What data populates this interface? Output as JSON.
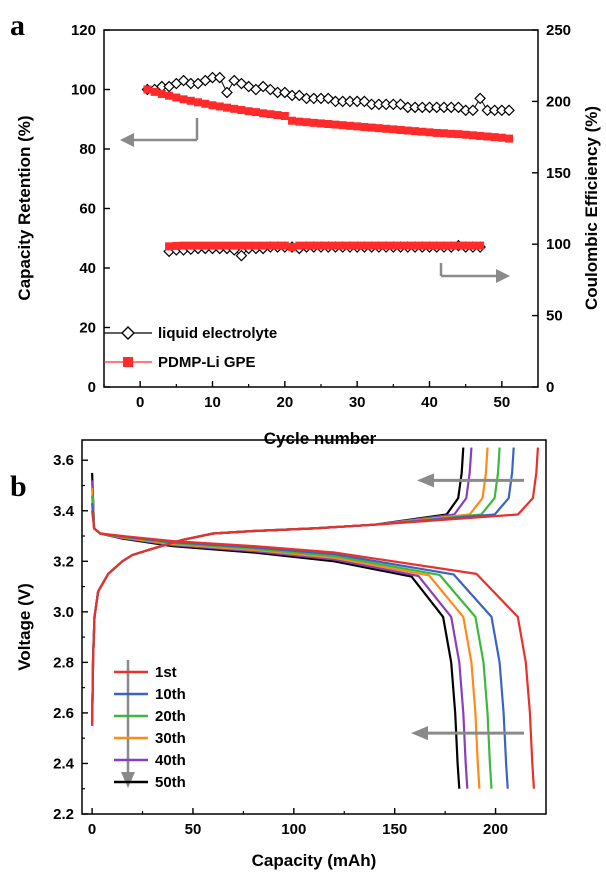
{
  "chart_data": [
    {
      "panel": "a",
      "type": "scatter",
      "xlabel": "Cycle number",
      "ylabel": "Capacity Retention (%)",
      "ylabel_right": "Coulombic Efficiency (%)",
      "xlim": [
        -5,
        55
      ],
      "ylim": [
        0,
        120
      ],
      "ylim_right": [
        0,
        250
      ],
      "xticks": [
        0,
        10,
        20,
        30,
        40,
        50
      ],
      "yticks": [
        0,
        20,
        40,
        60,
        80,
        100,
        120
      ],
      "yticks_right": [
        0,
        50,
        100,
        150,
        200,
        250
      ],
      "legend_position": "bottom-left",
      "colors": {
        "liquid": "#000000",
        "gpe": "#ff2a2a",
        "arrow": "#8a8a8a"
      },
      "series": [
        {
          "name": "liquid electrolyte",
          "marker": "open-diamond",
          "axis": "left",
          "x": [
            1,
            2,
            3,
            4,
            5,
            6,
            7,
            8,
            9,
            10,
            11,
            12,
            13,
            14,
            15,
            16,
            17,
            18,
            19,
            20,
            21,
            22,
            23,
            24,
            25,
            26,
            27,
            28,
            29,
            30,
            31,
            32,
            33,
            34,
            35,
            36,
            37,
            38,
            39,
            40,
            41,
            42,
            43,
            44,
            45,
            46,
            47,
            48,
            49,
            50,
            51
          ],
          "values": [
            100,
            100,
            101,
            101,
            102,
            103,
            102,
            102,
            103,
            104,
            104,
            99,
            103,
            102,
            101,
            100,
            101,
            100,
            99,
            99,
            98,
            98,
            97,
            97,
            97,
            97,
            96,
            96,
            96,
            96,
            96,
            95,
            95,
            95,
            95,
            95,
            94,
            94,
            94,
            94,
            94,
            94,
            94,
            94,
            93,
            93,
            97,
            93,
            93,
            93,
            93
          ]
        },
        {
          "name": "PDMP-Li GPE",
          "marker": "filled-square",
          "axis": "left",
          "x": [
            1,
            2,
            3,
            4,
            5,
            6,
            7,
            8,
            9,
            10,
            11,
            12,
            13,
            14,
            15,
            16,
            17,
            18,
            19,
            20,
            21,
            22,
            23,
            24,
            25,
            26,
            27,
            28,
            29,
            30,
            31,
            32,
            33,
            34,
            35,
            36,
            37,
            38,
            39,
            40,
            41,
            42,
            43,
            44,
            45,
            46,
            47,
            48,
            49,
            50,
            51
          ],
          "values": [
            100,
            99.2,
            98.5,
            97.9,
            97.3,
            96.7,
            96.2,
            95.7,
            95.2,
            94.7,
            94.3,
            93.9,
            93.5,
            93.1,
            92.7,
            92.4,
            92.0,
            91.7,
            91.4,
            91.1,
            89.5,
            89.2,
            89.0,
            88.8,
            88.6,
            88.4,
            88.2,
            88.0,
            87.8,
            87.6,
            87.4,
            87.2,
            87.0,
            86.8,
            86.6,
            86.4,
            86.2,
            86.0,
            85.8,
            85.6,
            85.4,
            85.3,
            85.1,
            85.0,
            84.8,
            84.6,
            84.4,
            84.2,
            84.0,
            83.8,
            83.5
          ]
        },
        {
          "name": "liquid electrolyte CE",
          "marker": "open-diamond",
          "axis": "right",
          "x": [
            4,
            5,
            6,
            7,
            8,
            9,
            10,
            11,
            12,
            13,
            14,
            15,
            16,
            17,
            18,
            19,
            20,
            21,
            22,
            23,
            24,
            25,
            26,
            27,
            28,
            29,
            30,
            31,
            32,
            33,
            34,
            35,
            36,
            37,
            38,
            39,
            40,
            41,
            42,
            43,
            44,
            45,
            46,
            47
          ],
          "values": [
            95,
            96,
            96,
            96.5,
            97,
            97,
            97,
            97,
            97,
            96,
            92,
            97,
            97,
            97,
            98,
            98,
            98,
            98,
            97,
            98,
            98,
            98,
            98,
            98,
            98,
            98,
            98,
            98,
            98,
            98,
            98,
            98,
            98,
            98,
            98,
            98,
            98,
            98,
            98,
            98,
            99,
            98,
            98,
            98
          ]
        },
        {
          "name": "PDMP-Li GPE CE",
          "marker": "filled-square",
          "axis": "right",
          "x": [
            4,
            5,
            6,
            7,
            8,
            9,
            10,
            11,
            12,
            13,
            14,
            15,
            16,
            17,
            18,
            19,
            20,
            21,
            22,
            23,
            24,
            25,
            26,
            27,
            28,
            29,
            30,
            31,
            32,
            33,
            34,
            35,
            36,
            37,
            38,
            39,
            40,
            41,
            42,
            43,
            44,
            45,
            46,
            47
          ],
          "values": [
            98.5,
            98.8,
            99,
            99,
            99,
            99,
            99,
            99,
            99,
            99,
            99,
            99,
            99,
            99,
            99,
            99,
            99,
            98,
            99,
            99,
            99,
            99,
            99,
            99,
            99,
            99,
            99,
            99,
            99,
            99,
            99,
            99,
            99,
            99,
            99,
            99,
            99,
            99,
            99,
            99,
            99,
            99,
            99,
            99
          ]
        }
      ]
    },
    {
      "panel": "b",
      "type": "line",
      "xlabel": "Capacity (mAh)",
      "ylabel": "Voltage (V)",
      "xlim": [
        -5,
        225
      ],
      "ylim": [
        2.2,
        3.68
      ],
      "xticks": [
        0,
        50,
        100,
        150,
        200
      ],
      "yticks": [
        2.2,
        2.4,
        2.6,
        2.8,
        3.0,
        3.2,
        3.4,
        3.6
      ],
      "legend_position": "bottom-left",
      "colors": {
        "arrow": "#8a8a8a"
      },
      "series": [
        {
          "name": "1st",
          "color": "#e8302c",
          "charge_end": 221,
          "discharge_end": 219
        },
        {
          "name": "10th",
          "color": "#3a63c4",
          "charge_end": 209,
          "discharge_end": 206
        },
        {
          "name": "20th",
          "color": "#3cb83c",
          "charge_end": 202,
          "discharge_end": 198
        },
        {
          "name": "30th",
          "color": "#ff8a1a",
          "charge_end": 196,
          "discharge_end": 192
        },
        {
          "name": "40th",
          "color": "#8a3fb8",
          "charge_end": 188,
          "discharge_end": 186
        },
        {
          "name": "50th",
          "color": "#000000",
          "charge_end": 184,
          "discharge_end": 182
        }
      ]
    }
  ]
}
